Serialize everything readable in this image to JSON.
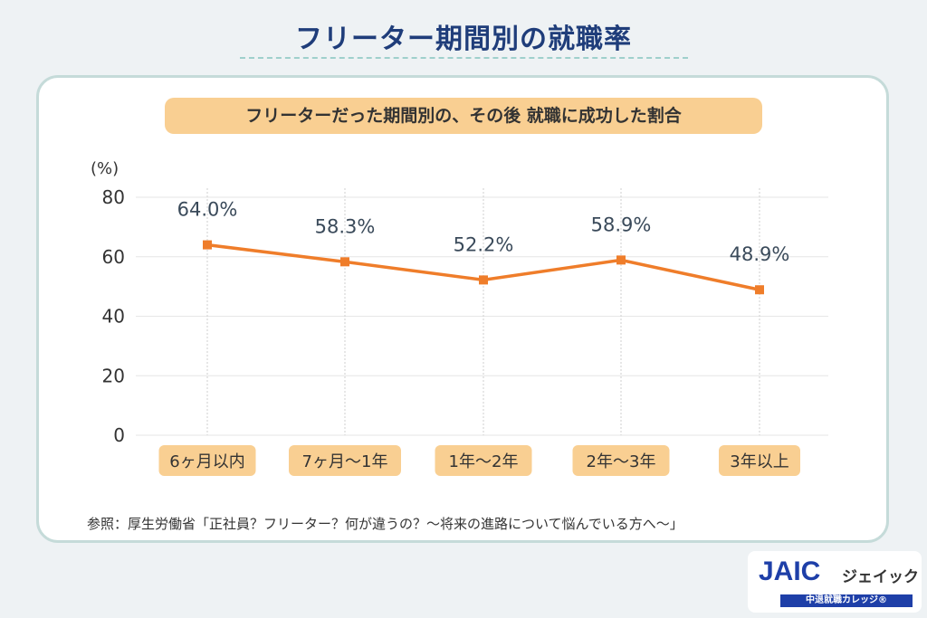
{
  "title": "フリーター期間別の就職率",
  "source": "参照：厚生労働省「正社員？フリーター？何が違うの？～将来の進路について悩んでいる方へ～」",
  "logo": {
    "brand": "JAIC",
    "kana": "ジェイック",
    "tagline": "中退就職カレッジ®"
  },
  "colors": {
    "line": "#ef7d2a",
    "category_bg": "#f9cf92",
    "title": "#1f3d7a"
  },
  "chart_data": {
    "type": "line",
    "title": "フリーターだった期間別の、その後 就職に成功した割合",
    "ylabel": "(%)",
    "ylim": [
      0,
      80
    ],
    "yticks": [
      0,
      20,
      40,
      60,
      80
    ],
    "grid": true,
    "categories": [
      "6ヶ月以内",
      "7ヶ月〜1年",
      "1年〜2年",
      "2年〜3年",
      "3年以上"
    ],
    "values": [
      64.0,
      58.3,
      52.2,
      58.9,
      48.9
    ],
    "data_labels": [
      "64.0%",
      "58.3%",
      "52.2%",
      "58.9%",
      "48.9%"
    ]
  }
}
